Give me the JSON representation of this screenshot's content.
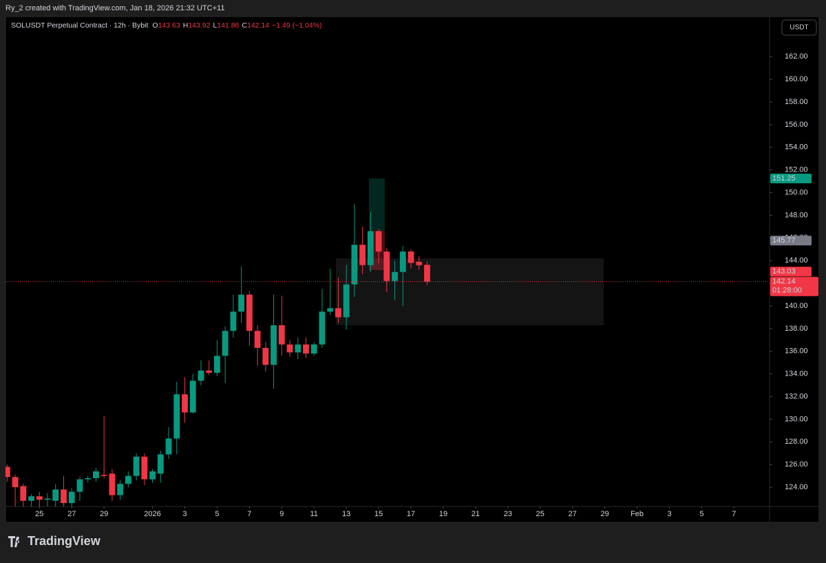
{
  "header": {
    "credit": "Ry_2 created with TradingView.com, Jan 18, 2026 21:32 UTC+11",
    "logo": "TradingView",
    "currency_button": "USDT"
  },
  "chart_data": {
    "type": "candlestick",
    "symbol": "SOLUSDT Perpetual Contract · 12h · Bybit",
    "ohlc_labels": [
      "O",
      "H",
      "L",
      "C"
    ],
    "ohlc_values": [
      143.63,
      143.92,
      141.86,
      142.14
    ],
    "change": "−1.49 (−1.04%)",
    "up_color": "#089981",
    "down_color": "#f23645",
    "x": [
      23,
      23.5,
      24,
      24.5,
      25,
      25.5,
      26,
      26.5,
      27,
      27.5,
      28,
      28.5,
      29,
      29.5,
      30,
      30.5,
      31,
      31.5,
      32,
      32.5,
      33,
      33.5,
      34,
      34.5,
      35,
      35.5,
      36,
      36.5,
      37,
      37.5,
      38,
      38.5,
      39,
      39.5,
      40,
      40.5,
      41,
      41.5,
      42,
      42.5,
      43,
      43.5,
      44,
      44.5,
      45,
      45.5,
      46,
      46.5,
      47,
      47.5,
      48,
      48.5,
      49
    ],
    "open": [
      125.8,
      124.9,
      124.1,
      122.8,
      123.2,
      122.9,
      122.8,
      123.8,
      122.6,
      123.6,
      124.7,
      124.8,
      125.1,
      125.2,
      123.3,
      124.3,
      125.0,
      126.7,
      124.7,
      125.2,
      126.9,
      128.3,
      132.2,
      130.6,
      133.4,
      134.3,
      134.1,
      135.6,
      137.8,
      139.5,
      141.0,
      137.8,
      136.3,
      134.8,
      138.3,
      136.6,
      135.9,
      136.6,
      135.8,
      136.6,
      139.5,
      139.8,
      139.0,
      141.9,
      145.4,
      143.6,
      146.6,
      144.8,
      142.2,
      143.0,
      144.8,
      143.9,
      143.63
    ],
    "high": [
      126.0,
      125.1,
      124.3,
      123.4,
      123.6,
      123.5,
      124.3,
      125.0,
      123.9,
      124.9,
      125.0,
      125.7,
      130.3,
      125.6,
      124.6,
      125.4,
      127.0,
      127.0,
      125.6,
      127.2,
      129.3,
      133.3,
      133.7,
      134.0,
      135.2,
      135.2,
      137.0,
      138.2,
      141.0,
      143.5,
      141.3,
      138.3,
      136.8,
      141.0,
      140.9,
      137.0,
      137.2,
      137.2,
      136.8,
      141.5,
      143.3,
      142.5,
      143.6,
      149.0,
      147.0,
      148.3,
      146.8,
      145.1,
      144.0,
      145.3,
      145.0,
      144.4,
      143.92
    ],
    "low": [
      124.5,
      122.0,
      122.0,
      122.0,
      122.0,
      122.0,
      122.0,
      122.2,
      122.0,
      122.8,
      124.4,
      124.5,
      124.8,
      122.8,
      122.9,
      124.0,
      124.6,
      124.2,
      124.4,
      124.4,
      126.5,
      126.9,
      129.7,
      130.5,
      133.0,
      133.9,
      133.8,
      133.2,
      137.2,
      138.5,
      136.5,
      134.7,
      134.2,
      132.7,
      135.6,
      135.5,
      135.3,
      135.4,
      135.6,
      136.3,
      139.2,
      138.5,
      137.9,
      140.8,
      142.8,
      143.0,
      143.8,
      141.2,
      140.5,
      140.0,
      143.3,
      143.2,
      141.86
    ],
    "close": [
      124.9,
      124.0,
      122.8,
      123.2,
      122.9,
      123.0,
      123.8,
      122.6,
      123.6,
      124.7,
      124.8,
      125.4,
      125.0,
      123.3,
      124.3,
      125.0,
      126.7,
      124.7,
      125.4,
      126.9,
      128.3,
      132.2,
      130.6,
      133.4,
      134.3,
      134.1,
      135.6,
      137.8,
      139.5,
      141.0,
      137.8,
      136.3,
      134.8,
      138.3,
      136.6,
      135.9,
      136.6,
      135.8,
      136.6,
      139.5,
      139.8,
      139.0,
      141.9,
      145.4,
      143.6,
      146.6,
      144.8,
      142.2,
      143.0,
      144.8,
      143.8,
      143.6,
      142.14
    ],
    "xlim": [
      22.9,
      70.2
    ],
    "xticks": [
      25,
      27,
      29,
      {
        "value": 32,
        "label": "2026"
      },
      {
        "value": 34,
        "label": "3"
      },
      {
        "value": 36,
        "label": "5"
      },
      {
        "value": 38,
        "label": "7"
      },
      {
        "value": 40,
        "label": "9"
      },
      {
        "value": 42,
        "label": "11"
      },
      {
        "value": 44,
        "label": "13"
      },
      {
        "value": 46,
        "label": "15"
      },
      {
        "value": 48,
        "label": "17"
      },
      {
        "value": 50,
        "label": "19"
      },
      {
        "value": 52,
        "label": "21"
      },
      {
        "value": 54,
        "label": "23"
      },
      {
        "value": 56,
        "label": "25"
      },
      {
        "value": 58,
        "label": "27"
      },
      {
        "value": 60,
        "label": "29"
      },
      {
        "value": 62,
        "label": "Feb"
      },
      {
        "value": 64,
        "label": "3"
      },
      {
        "value": 66,
        "label": "5"
      },
      {
        "value": 68,
        "label": "7"
      }
    ],
    "ylim": [
      122.3,
      165.3
    ],
    "yticks": [
      {
        "value": 124,
        "label": "124.00"
      },
      {
        "value": 126,
        "label": "126.00"
      },
      {
        "value": 128,
        "label": "128.00"
      },
      {
        "value": 130,
        "label": "130.00"
      },
      {
        "value": 132,
        "label": "132.00"
      },
      {
        "value": 134,
        "label": "134.00"
      },
      {
        "value": 136,
        "label": "136.00"
      },
      {
        "value": 138,
        "label": "138.00"
      },
      {
        "value": 140,
        "label": "140.00"
      },
      {
        "value": 142,
        "label": "142.00"
      },
      {
        "value": 144,
        "label": "144.00"
      },
      {
        "value": 146,
        "label": "146.00"
      },
      {
        "value": 148,
        "label": "148.00"
      },
      {
        "value": 150,
        "label": "150.00"
      },
      {
        "value": 152,
        "label": "152.00"
      },
      {
        "value": 154,
        "label": "154.00"
      },
      {
        "value": 156,
        "label": "156.00"
      },
      {
        "value": 158,
        "label": "158.00"
      },
      {
        "value": 160,
        "label": "160.00"
      },
      {
        "value": 162,
        "label": "162.00"
      }
    ],
    "price_markers": [
      {
        "value": 151.25,
        "color": "#089981"
      },
      {
        "value": 145.77,
        "color": "#787b86"
      },
      {
        "value": 143.03,
        "color": "#f23645"
      },
      {
        "value": 142.14,
        "color": "#f23645"
      }
    ],
    "countdown": "01:28:00"
  }
}
